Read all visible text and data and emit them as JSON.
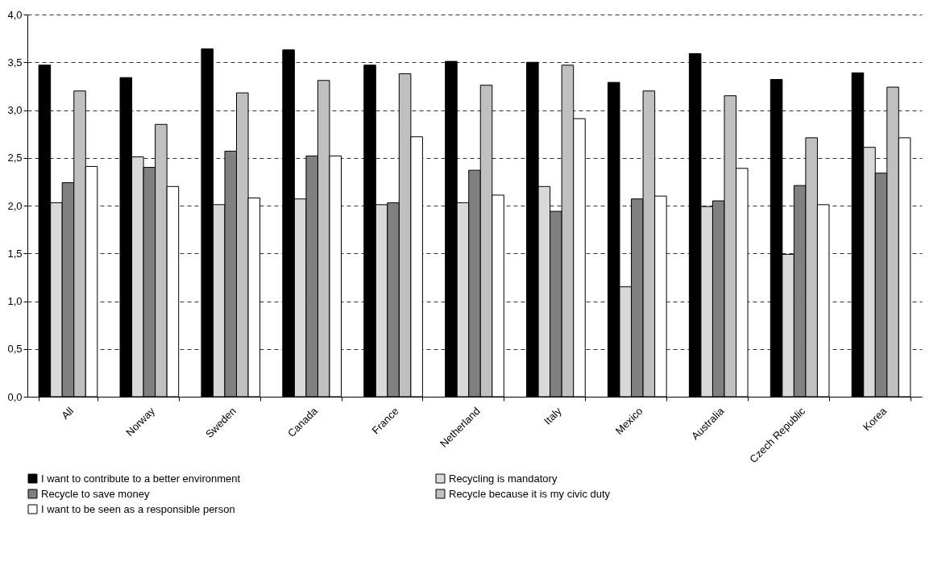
{
  "chart_data": {
    "type": "bar",
    "categories": [
      "All",
      "Norway",
      "Sweden",
      "Canada",
      "France",
      "Netherland",
      "Italy",
      "Mexico",
      "Australia",
      "Czech Republic",
      "Korea"
    ],
    "series": [
      {
        "name": "I want to contribute to a better environment",
        "color": "#000000",
        "values": [
          3.47,
          3.34,
          3.64,
          3.63,
          3.47,
          3.51,
          3.5,
          3.29,
          3.59,
          3.32,
          3.39
        ]
      },
      {
        "name": "Recycling is mandatory",
        "color": "#d9d9d9",
        "values": [
          2.03,
          2.51,
          2.01,
          2.07,
          2.01,
          2.03,
          2.2,
          1.15,
          1.99,
          1.49,
          2.61
        ]
      },
      {
        "name": "Recycle to save money",
        "color": "#808080",
        "values": [
          2.24,
          2.4,
          2.57,
          2.52,
          2.03,
          2.37,
          1.94,
          2.07,
          2.05,
          2.21,
          2.34
        ]
      },
      {
        "name": "Recycle because it is my civic duty",
        "color": "#c0c0c0",
        "values": [
          3.2,
          2.85,
          3.18,
          3.31,
          3.38,
          3.26,
          3.47,
          3.2,
          3.15,
          2.71,
          3.24
        ]
      },
      {
        "name": "I want to be seen as a responsible person",
        "color": "#ffffff",
        "values": [
          2.41,
          2.2,
          2.08,
          2.52,
          2.72,
          2.11,
          2.91,
          2.1,
          2.39,
          2.01,
          2.71
        ]
      }
    ],
    "ylim": [
      0,
      4
    ],
    "yticks": [
      {
        "value": 0,
        "label": "0,0"
      },
      {
        "value": 0.5,
        "label": "0,5"
      },
      {
        "value": 1,
        "label": "1,0"
      },
      {
        "value": 1.5,
        "label": "1,5"
      },
      {
        "value": 2,
        "label": "2,0"
      },
      {
        "value": 2.5,
        "label": "2,5"
      },
      {
        "value": 3,
        "label": "3,0"
      },
      {
        "value": 3.5,
        "label": "3,5"
      },
      {
        "value": 4,
        "label": "4,0"
      }
    ],
    "grid": "y",
    "legend": "bottom"
  }
}
